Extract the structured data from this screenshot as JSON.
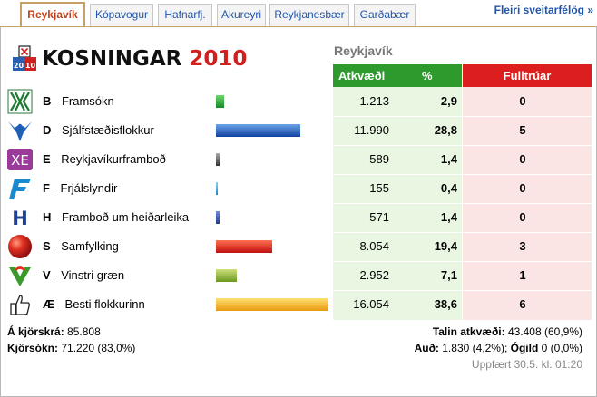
{
  "tabs": [
    {
      "label": "Reykjavík",
      "active": true
    },
    {
      "label": "Kópavogur",
      "active": false
    },
    {
      "label": "Hafnarfj.",
      "active": false
    },
    {
      "label": "Akureyri",
      "active": false
    },
    {
      "label": "Reykjanesbær",
      "active": false
    },
    {
      "label": "Garðabær",
      "active": false
    }
  ],
  "more_link": "Fleiri sveitarfélög »",
  "logo": {
    "word": "KOSNINGAR",
    "year": "2010"
  },
  "region": "Reykjavík",
  "columns": {
    "votes": "Atkvæði",
    "pct": "%",
    "seats": "Fulltrúar"
  },
  "parties": [
    {
      "letter": "B",
      "name": " - Framsókn",
      "votes": "1.213",
      "pct": "2,9",
      "pct_value": 2.9,
      "seats": "0",
      "color": "#2a9a3a",
      "icon": "framsokn-logo-icon"
    },
    {
      "letter": "D",
      "name": " - Sjálfstæðisflokkur",
      "votes": "11.990",
      "pct": "28,8",
      "pct_value": 28.8,
      "seats": "5",
      "color": "#1f5fb8",
      "icon": "falcon-logo-icon"
    },
    {
      "letter": "E",
      "name": " - Reykjavíkurframboð",
      "votes": "589",
      "pct": "1,4",
      "pct_value": 1.4,
      "seats": "0",
      "color": "#555555",
      "icon": "xe-logo-icon"
    },
    {
      "letter": "F",
      "name": " - Frjálslyndir",
      "votes": "155",
      "pct": "0,4",
      "pct_value": 0.4,
      "seats": "0",
      "color": "#3aa0d0",
      "icon": "frjalslyndir-logo-icon"
    },
    {
      "letter": "H",
      "name": " - Framboð um heiðarleika",
      "votes": "571",
      "pct": "1,4",
      "pct_value": 1.4,
      "seats": "0",
      "color": "#1f3f8f",
      "icon": "h-logo-icon"
    },
    {
      "letter": "S",
      "name": " - Samfylking",
      "votes": "8.054",
      "pct": "19,4",
      "pct_value": 19.4,
      "seats": "3",
      "color": "#e03020",
      "icon": "red-ball-logo-icon"
    },
    {
      "letter": "V",
      "name": " - Vinstri græn",
      "votes": "2.952",
      "pct": "7,1",
      "pct_value": 7.1,
      "seats": "1",
      "color": "#8ab830",
      "icon": "v-logo-icon"
    },
    {
      "letter": "Æ",
      "name": " - Besti flokkurinn",
      "votes": "16.054",
      "pct": "38,6",
      "pct_value": 38.6,
      "seats": "6",
      "color": "#f0b020",
      "icon": "thumbs-up-icon"
    }
  ],
  "footer": {
    "registered_label": "Á kjörskrá:",
    "registered_value": " 85.808",
    "turnout_label": "Kjörsókn:",
    "turnout_value": " 71.220 (83,0%)",
    "counted_label": "Talin atkvæði:",
    "counted_value": " 43.408 (60,9%)",
    "blank_label": "Auð:",
    "blank_value": " 1.830 (4,2%); ",
    "invalid_label": "Ógild",
    "invalid_value": " 0 (0,0%)",
    "updated": "Uppfært 30.5. kl. 01:20"
  }
}
